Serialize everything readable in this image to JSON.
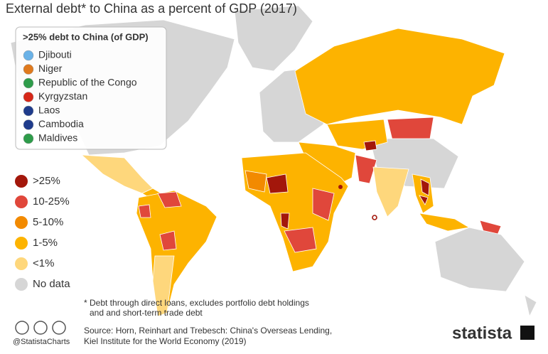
{
  "title": "External debt* to China as a percent of GDP (2017)",
  "highlight_box": {
    "title": ">25% debt to China (of GDP)",
    "countries": [
      "Djibouti",
      "Niger",
      "Republic of the Congo",
      "Kyrgyzstan",
      "Laos",
      "Cambodia",
      "Maldives"
    ]
  },
  "legend": [
    {
      "label": ">25%",
      "color": "#a3170b"
    },
    {
      "label": "10-25%",
      "color": "#e0473b"
    },
    {
      "label": "5-10%",
      "color": "#f28a00"
    },
    {
      "label": "1-5%",
      "color": "#fdb300"
    },
    {
      "label": "<1%",
      "color": "#fed77c"
    },
    {
      "label": "No data",
      "color": "#d6d6d6"
    }
  ],
  "footnote": [
    "* Debt through direct loans, excludes portfolio debt holdings",
    "and and short-term trade debt"
  ],
  "source": [
    "Source: Horn, Reinhart and Trebesch: China's Overseas Lending,",
    "Kiel Institute for the World Economy (2019)"
  ],
  "handle": "@StatistaCharts",
  "brand": "statista"
}
